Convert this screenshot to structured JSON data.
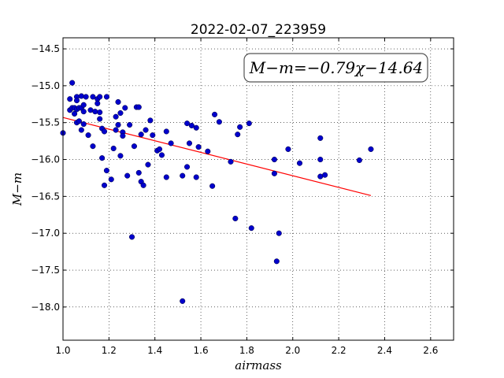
{
  "chart_data": {
    "type": "scatter",
    "title": "2022-02-07_223959",
    "xlabel": "airmass",
    "ylabel": "M−m",
    "annotation": "M−m=−0.79χ−14.64",
    "xlim": [
      1.0,
      2.7
    ],
    "ylim": [
      -18.45,
      -14.35
    ],
    "y_inverted": true,
    "grid": true,
    "grid_style": "dotted",
    "xticks": [
      1.0,
      1.2,
      1.4,
      1.6,
      1.8,
      2.0,
      2.2,
      2.4,
      2.6
    ],
    "xtick_labels": [
      "1.0",
      "1.2",
      "1.4",
      "1.6",
      "1.8",
      "2.0",
      "2.2",
      "2.4",
      "2.6"
    ],
    "yticks": [
      -14.5,
      -15.0,
      -15.5,
      -16.0,
      -16.5,
      -17.0,
      -17.5,
      -18.0
    ],
    "ytick_labels": [
      "−14.5",
      "−15.0",
      "−15.5",
      "−16.0",
      "−16.5",
      "−17.0",
      "−17.5",
      "−18.0"
    ],
    "point_color": "#0000cc",
    "fit_color": "#ff0000",
    "fit": {
      "slope": -0.79,
      "intercept": -14.64,
      "x_range": [
        1.0,
        2.34
      ]
    },
    "points": [
      [
        1.0,
        -15.64
      ],
      [
        1.03,
        -15.33
      ],
      [
        1.03,
        -15.18
      ],
      [
        1.04,
        -15.3
      ],
      [
        1.04,
        -14.96
      ],
      [
        1.05,
        -15.3
      ],
      [
        1.05,
        -15.38
      ],
      [
        1.06,
        -15.15
      ],
      [
        1.06,
        -15.2
      ],
      [
        1.06,
        -15.32
      ],
      [
        1.06,
        -15.5
      ],
      [
        1.07,
        -15.3
      ],
      [
        1.07,
        -15.48
      ],
      [
        1.08,
        -15.14
      ],
      [
        1.08,
        -15.3
      ],
      [
        1.08,
        -15.6
      ],
      [
        1.09,
        -15.26
      ],
      [
        1.09,
        -15.35
      ],
      [
        1.09,
        -15.52
      ],
      [
        1.1,
        -15.15
      ],
      [
        1.11,
        -15.67
      ],
      [
        1.12,
        -15.33
      ],
      [
        1.13,
        -15.15
      ],
      [
        1.13,
        -15.82
      ],
      [
        1.14,
        -15.35
      ],
      [
        1.15,
        -15.18
      ],
      [
        1.15,
        -15.24
      ],
      [
        1.16,
        -15.15
      ],
      [
        1.16,
        -15.36
      ],
      [
        1.16,
        -15.45
      ],
      [
        1.17,
        -15.58
      ],
      [
        1.17,
        -15.98
      ],
      [
        1.18,
        -16.35
      ],
      [
        1.18,
        -15.62
      ],
      [
        1.19,
        -16.15
      ],
      [
        1.19,
        -15.15
      ],
      [
        1.21,
        -16.27
      ],
      [
        1.22,
        -15.85
      ],
      [
        1.23,
        -15.6
      ],
      [
        1.23,
        -15.42
      ],
      [
        1.24,
        -15.53
      ],
      [
        1.24,
        -15.22
      ],
      [
        1.25,
        -15.37
      ],
      [
        1.25,
        -15.95
      ],
      [
        1.26,
        -15.63
      ],
      [
        1.26,
        -15.68
      ],
      [
        1.27,
        -15.3
      ],
      [
        1.28,
        -16.22
      ],
      [
        1.29,
        -15.53
      ],
      [
        1.3,
        -17.05
      ],
      [
        1.31,
        -15.82
      ],
      [
        1.32,
        -15.29
      ],
      [
        1.33,
        -16.18
      ],
      [
        1.33,
        -15.29
      ],
      [
        1.34,
        -16.3
      ],
      [
        1.34,
        -15.66
      ],
      [
        1.35,
        -16.35
      ],
      [
        1.36,
        -15.6
      ],
      [
        1.37,
        -16.07
      ],
      [
        1.38,
        -15.47
      ],
      [
        1.39,
        -15.67
      ],
      [
        1.41,
        -15.88
      ],
      [
        1.42,
        -15.86
      ],
      [
        1.43,
        -15.94
      ],
      [
        1.45,
        -16.24
      ],
      [
        1.45,
        -15.62
      ],
      [
        1.47,
        -15.78
      ],
      [
        1.52,
        -16.22
      ],
      [
        1.52,
        -17.92
      ],
      [
        1.54,
        -15.51
      ],
      [
        1.54,
        -16.1
      ],
      [
        1.55,
        -15.78
      ],
      [
        1.56,
        -15.54
      ],
      [
        1.58,
        -16.24
      ],
      [
        1.58,
        -15.57
      ],
      [
        1.59,
        -15.83
      ],
      [
        1.63,
        -15.89
      ],
      [
        1.65,
        -16.36
      ],
      [
        1.66,
        -15.39
      ],
      [
        1.68,
        -15.49
      ],
      [
        1.73,
        -16.03
      ],
      [
        1.75,
        -16.8
      ],
      [
        1.76,
        -15.66
      ],
      [
        1.77,
        -15.56
      ],
      [
        1.81,
        -15.51
      ],
      [
        1.82,
        -16.93
      ],
      [
        1.92,
        -16.0
      ],
      [
        1.92,
        -16.19
      ],
      [
        1.93,
        -17.38
      ],
      [
        1.94,
        -17.0
      ],
      [
        1.98,
        -15.86
      ],
      [
        2.03,
        -16.05
      ],
      [
        2.12,
        -16.0
      ],
      [
        2.12,
        -16.23
      ],
      [
        2.12,
        -15.71
      ],
      [
        2.14,
        -16.21
      ],
      [
        2.29,
        -16.01
      ],
      [
        2.34,
        -15.86
      ]
    ]
  }
}
